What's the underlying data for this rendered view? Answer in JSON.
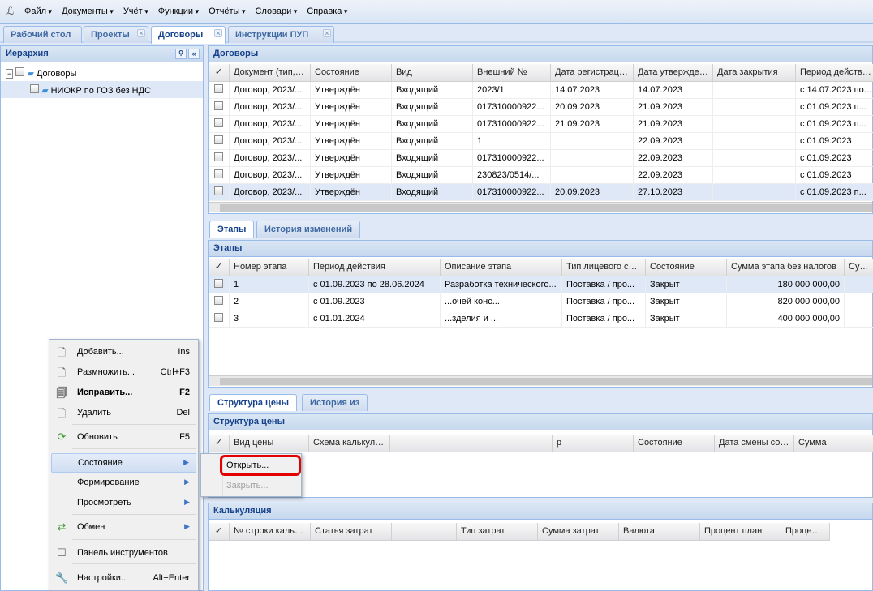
{
  "menubar": {
    "items": [
      "Файл",
      "Документы",
      "Учёт",
      "Функции",
      "Отчёты",
      "Словари",
      "Справка"
    ]
  },
  "tabs": [
    {
      "label": "Рабочий стол"
    },
    {
      "label": "Проекты"
    },
    {
      "label": "Договоры"
    },
    {
      "label": "Инструкции ПУП"
    }
  ],
  "hierarchy": {
    "title": "Иерархия",
    "nodes": [
      "Договоры",
      "НИОКР по ГОЗ без НДС"
    ]
  },
  "contracts": {
    "title": "Договоры",
    "columns": [
      "✓",
      "Документ (тип, №",
      "Состояние",
      "Вид",
      "Внешний №",
      "Дата регистрации...",
      "Дата утверждения",
      "Дата закрытия",
      "Период действия..."
    ],
    "rows": [
      [
        "",
        "Договор, 2023/...",
        "Утверждён",
        "Входящий",
        "2023/1",
        "14.07.2023",
        "14.07.2023",
        "",
        "с 14.07.2023 по..."
      ],
      [
        "",
        "Договор, 2023/...",
        "Утверждён",
        "Входящий",
        "017310000922...",
        "20.09.2023",
        "21.09.2023",
        "",
        "с 01.09.2023 п..."
      ],
      [
        "",
        "Договор, 2023/...",
        "Утверждён",
        "Входящий",
        "017310000922...",
        "21.09.2023",
        "21.09.2023",
        "",
        "с 01.09.2023 п..."
      ],
      [
        "",
        "Договор, 2023/...",
        "Утверждён",
        "Входящий",
        "1",
        "",
        "22.09.2023",
        "",
        "с 01.09.2023"
      ],
      [
        "",
        "Договор, 2023/...",
        "Утверждён",
        "Входящий",
        "017310000922...",
        "",
        "22.09.2023",
        "",
        "с 01.09.2023"
      ],
      [
        "",
        "Договор, 2023/...",
        "Утверждён",
        "Входящий",
        "230823/0514/...",
        "",
        "22.09.2023",
        "",
        "с 01.09.2023"
      ],
      [
        "",
        "Договор, 2023/...",
        "Утверждён",
        "Входящий",
        "017310000922...",
        "20.09.2023",
        "27.10.2023",
        "",
        "с 01.09.2023 п..."
      ]
    ]
  },
  "subtabs1": [
    "Этапы",
    "История изменений"
  ],
  "stages": {
    "title": "Этапы",
    "columns": [
      "✓",
      "Номер этапа",
      "Период действия",
      "Описание этапа",
      "Тип лицевого счёт",
      "Состояние",
      "Сумма этапа без налогов",
      "Сумма"
    ],
    "rows": [
      [
        "",
        "1",
        "с 01.09.2023 по 28.06.2024",
        "Разработка технического...",
        "Поставка / про...",
        "Закрыт",
        "180 000 000,00",
        ""
      ],
      [
        "",
        "2",
        "с 01.09.2023",
        "...очей конс...",
        "Поставка / про...",
        "Закрыт",
        "820 000 000,00",
        ""
      ],
      [
        "",
        "3",
        "с 01.01.2024",
        "...зделия и ...",
        "Поставка / про...",
        "Закрыт",
        "400 000 000,00",
        ""
      ]
    ]
  },
  "subtabs2": [
    "Структура цены",
    "История из"
  ],
  "price": {
    "title": "Структура цены",
    "columns": [
      "✓",
      "Вид цены",
      "Схема калькуляции",
      "",
      "р",
      "Состояние",
      "Дата смены состояния",
      "Сумма"
    ]
  },
  "calc": {
    "title": "Калькуляция",
    "columns": [
      "✓",
      "№ строки калькул",
      "Статья затрат",
      "",
      "Тип затрат",
      "Сумма затрат",
      "Валюта",
      "Процент план",
      "Процент ф"
    ]
  },
  "context_menu": {
    "items": [
      {
        "label": "Добавить...",
        "shortcut": "Ins",
        "icon": "page-icon"
      },
      {
        "label": "Размножить...",
        "shortcut": "Ctrl+F3",
        "icon": "page-add-icon"
      },
      {
        "label": "Исправить...",
        "shortcut": "F2",
        "icon": "page-edit-icon"
      },
      {
        "label": "Удалить",
        "shortcut": "Del",
        "icon": "page-delete-icon"
      },
      {
        "label": "Обновить",
        "shortcut": "F5",
        "icon": "refresh-icon"
      },
      {
        "label": "Состояние",
        "shortcut": "",
        "icon": ""
      },
      {
        "label": "Формирование",
        "shortcut": "",
        "icon": ""
      },
      {
        "label": "Просмотреть",
        "shortcut": "",
        "icon": ""
      },
      {
        "label": "Обмен",
        "shortcut": "",
        "icon": "exchange-icon"
      },
      {
        "label": "Панель инструментов",
        "shortcut": "",
        "icon": "checkbox-icon"
      },
      {
        "label": "Настройки...",
        "shortcut": "Alt+Enter",
        "icon": "wrench-icon"
      }
    ]
  },
  "submenu": {
    "items": [
      "Открыть...",
      "Закрыть..."
    ]
  },
  "colors": {
    "highlight": "#e30000",
    "accent": "#15428b"
  }
}
